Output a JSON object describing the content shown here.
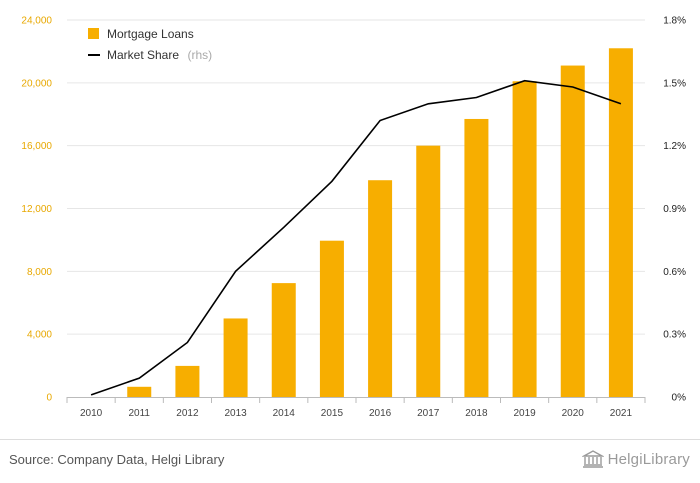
{
  "chart_data": {
    "type": "bar+line",
    "categories": [
      "2010",
      "2011",
      "2012",
      "2013",
      "2014",
      "2015",
      "2016",
      "2017",
      "2018",
      "2019",
      "2020",
      "2021"
    ],
    "series": [
      {
        "name": "Mortgage Loans",
        "type": "bar",
        "axis": "left",
        "color": "#f7ae00",
        "values": [
          0,
          650,
          1980,
          5000,
          7250,
          9950,
          13800,
          16000,
          17700,
          20100,
          21100,
          22200
        ]
      },
      {
        "name": "Market Share",
        "name_note": "(rhs)",
        "type": "line",
        "axis": "right",
        "color": "#000000",
        "values": [
          0.01,
          0.09,
          0.26,
          0.6,
          0.81,
          1.03,
          1.32,
          1.4,
          1.43,
          1.51,
          1.48,
          1.4
        ]
      }
    ],
    "y_left": {
      "min": 0,
      "max": 24000,
      "ticks": [
        "0",
        "4,000",
        "8,000",
        "12,000",
        "16,000",
        "20,000",
        "24,000"
      ],
      "tick_values": [
        0,
        4000,
        8000,
        12000,
        16000,
        20000,
        24000
      ]
    },
    "y_right": {
      "min": 0,
      "max": 1.8,
      "ticks": [
        "0%",
        "0.3%",
        "0.6%",
        "0.9%",
        "1.2%",
        "1.5%",
        "1.8%"
      ],
      "tick_values": [
        0,
        0.3,
        0.6,
        0.9,
        1.2,
        1.5,
        1.8
      ]
    },
    "grid": true,
    "legend": "top-left"
  },
  "footer": {
    "source": "Source: Company Data, Helgi Library",
    "brand": "HelgiLibrary",
    "brand_icon": "library-building-icon"
  }
}
